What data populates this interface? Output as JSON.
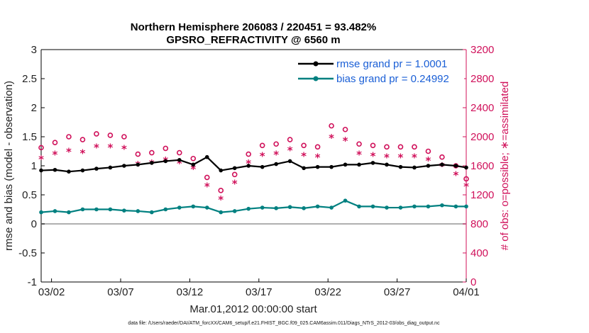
{
  "chart_data": {
    "type": "line",
    "title_line1": "Northern Hemisphere 206083 / 220451 = 93.482%",
    "title_line2": "GPSRO_REFRACTIVITY @ 6560 m",
    "xlabel": "Mar.01,2012 00:00:00 start",
    "ylabel_left": "rmse and bias (model - observation)",
    "ylabel_right": "# of obs: o=possible; ∗=assimilated",
    "left_ylim": [
      -1,
      3
    ],
    "left_ticks": [
      "-1",
      "-0.5",
      "0",
      "0.5",
      "1",
      "1.5",
      "2",
      "2.5",
      "3"
    ],
    "right_ylim": [
      0,
      3200
    ],
    "right_ticks": [
      "0",
      "400",
      "800",
      "1200",
      "1600",
      "2000",
      "2400",
      "2800",
      "3200"
    ],
    "xlim_days": [
      1.25,
      32
    ],
    "x_ticks": [
      "03/02",
      "03/07",
      "03/12",
      "03/17",
      "03/22",
      "03/27",
      "04/01"
    ],
    "x_tick_days": [
      2,
      7,
      12,
      17,
      22,
      27,
      32
    ],
    "legend": {
      "position": "top-right",
      "rmse_label": "rmse grand pr = 1.0001",
      "bias_label": "bias grand pr = 0.24992"
    },
    "colors": {
      "rmse": "#000000",
      "bias": "#008080",
      "obs": "#d0105a",
      "zero_line": "#b0b0b0",
      "legend_text": "#1a5fd6"
    },
    "sample_days": [
      1.25,
      2.25,
      3.25,
      4.25,
      5.25,
      6.25,
      7.25,
      8.25,
      9.25,
      10.25,
      11.25,
      12.25,
      13.25,
      14.25,
      15.25,
      16.25,
      17.25,
      18.25,
      19.25,
      20.25,
      21.25,
      22.25,
      23.25,
      24.25,
      25.25,
      26.25,
      27.25,
      28.25,
      29.25,
      30.25,
      31.25,
      32.0
    ],
    "series": [
      {
        "name": "rmse",
        "values": [
          0.92,
          0.93,
          0.9,
          0.92,
          0.95,
          0.97,
          1.0,
          1.02,
          1.05,
          1.08,
          1.1,
          1.02,
          1.15,
          0.92,
          0.96,
          1.0,
          0.98,
          1.03,
          1.08,
          0.96,
          0.98,
          0.98,
          1.02,
          1.02,
          1.05,
          1.02,
          0.98,
          0.97,
          1.0,
          1.02,
          1.0,
          0.97
        ]
      },
      {
        "name": "bias",
        "values": [
          0.2,
          0.22,
          0.2,
          0.25,
          0.25,
          0.25,
          0.23,
          0.22,
          0.2,
          0.25,
          0.28,
          0.3,
          0.28,
          0.2,
          0.22,
          0.26,
          0.28,
          0.27,
          0.29,
          0.27,
          0.3,
          0.28,
          0.4,
          0.3,
          0.3,
          0.28,
          0.28,
          0.3,
          0.3,
          0.32,
          0.3,
          0.3
        ]
      },
      {
        "name": "obs_possible",
        "values": [
          1850,
          1920,
          2000,
          1960,
          2040,
          2020,
          2000,
          1760,
          1780,
          1840,
          1780,
          1700,
          1440,
          1260,
          1480,
          1760,
          1880,
          1900,
          1960,
          1880,
          1860,
          2150,
          2100,
          1900,
          1880,
          1860,
          1860,
          1860,
          1800,
          1720,
          1600,
          1420
        ]
      },
      {
        "name": "obs_assimilated",
        "values": [
          1700,
          1760,
          1800,
          1780,
          1860,
          1860,
          1840,
          1620,
          1640,
          1680,
          1640,
          1560,
          1320,
          1140,
          1360,
          1640,
          1740,
          1760,
          1820,
          1740,
          1720,
          1990,
          1950,
          1760,
          1740,
          1720,
          1720,
          1720,
          1680,
          1600,
          1480,
          1320
        ]
      }
    ],
    "footer": "data file: /Users/raeder/DAI/ATM_forcXX/CAM6_setup/f.e21.FHIST_BGC.f09_025.CAM6assim.011/Diags_NTrS_2012-03/obs_diag_output.nc"
  }
}
